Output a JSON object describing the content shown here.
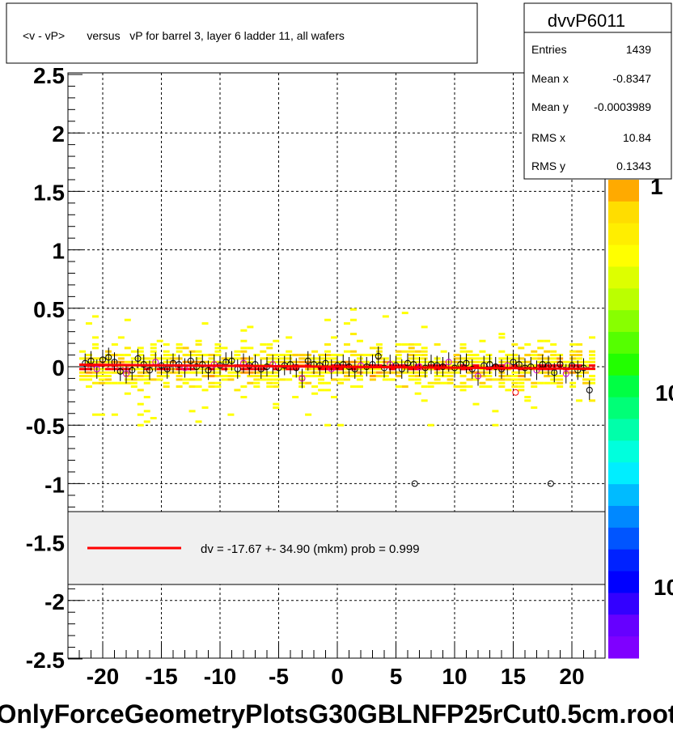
{
  "title": "<v - vP>       versus   vP for barrel 3, layer 6 ladder 11, all wafers",
  "filename": "OnlyForceGeometryPlotsG30GBLNFP25rCut0.5cm.root",
  "stats": {
    "name": "dvvP6011",
    "rows": [
      {
        "label": "Entries",
        "value": "1439"
      },
      {
        "label": "Mean x",
        "value": "-0.8347"
      },
      {
        "label": "Mean y",
        "value": "-0.0003989"
      },
      {
        "label": "RMS x",
        "value": "10.84"
      },
      {
        "label": "RMS y",
        "value": "0.1343"
      }
    ]
  },
  "legend": {
    "text": "dv =  -17.67 +- 34.90 (mkm) prob = 0.999",
    "color": "#ff0000"
  },
  "palette_labels": [
    "1",
    "10",
    "10"
  ],
  "colors": {
    "fit_line": "#ff0000",
    "grid": "#000000",
    "legend_bg": "#f0f0f0"
  },
  "chart_data": {
    "type": "scatter",
    "title": "<v - vP>       versus   vP for barrel 3, layer 6 ladder 11, all wafers",
    "xlim": [
      -23,
      23
    ],
    "ylim": [
      -2.5,
      2.5
    ],
    "x_ticks": [
      -20,
      -15,
      -10,
      -5,
      0,
      5,
      10,
      15,
      20
    ],
    "y_ticks": [
      -2.5,
      -2,
      -1.5,
      -1,
      -0.5,
      0,
      0.5,
      1,
      1.5,
      2,
      2.5
    ],
    "grid": true,
    "fit": {
      "slope": -0.0008,
      "intercept": 0.0
    },
    "profile_points": [
      [
        -21.5,
        0.03
      ],
      [
        -21.0,
        0.05
      ],
      [
        -20.5,
        -0.02
      ],
      [
        -20.0,
        0.06
      ],
      [
        -19.5,
        0.08
      ],
      [
        -19.0,
        0.04
      ],
      [
        -18.5,
        -0.04
      ],
      [
        -18.0,
        -0.06
      ],
      [
        -17.5,
        -0.03
      ],
      [
        -17.0,
        0.07
      ],
      [
        -16.5,
        0.02
      ],
      [
        -16.0,
        -0.03
      ],
      [
        -15.5,
        0.04
      ],
      [
        -15.0,
        0.01
      ],
      [
        -14.5,
        -0.02
      ],
      [
        -14.0,
        0.03
      ],
      [
        -13.5,
        0.02
      ],
      [
        -13.0,
        -0.01
      ],
      [
        -12.5,
        0.05
      ],
      [
        -12.0,
        0.0
      ],
      [
        -11.5,
        0.02
      ],
      [
        -11.0,
        -0.03
      ],
      [
        -10.5,
        0.02
      ],
      [
        -10.0,
        0.01
      ],
      [
        -9.5,
        0.04
      ],
      [
        -9.0,
        0.05
      ],
      [
        -8.5,
        -0.02
      ],
      [
        -8.0,
        0.03
      ],
      [
        -7.5,
        0.01
      ],
      [
        -7.0,
        0.02
      ],
      [
        -6.5,
        -0.02
      ],
      [
        -6.0,
        0.0
      ],
      [
        -5.5,
        0.02
      ],
      [
        -5.0,
        -0.01
      ],
      [
        -4.5,
        0.01
      ],
      [
        -4.0,
        0.02
      ],
      [
        -3.5,
        -0.01
      ],
      [
        -3.0,
        -0.1
      ],
      [
        -2.5,
        0.05
      ],
      [
        -2.0,
        0.02
      ],
      [
        -1.5,
        0.01
      ],
      [
        -1.0,
        0.03
      ],
      [
        -0.5,
        -0.02
      ],
      [
        0.0,
        0.01
      ],
      [
        0.5,
        0.02
      ],
      [
        1.0,
        0.0
      ],
      [
        1.5,
        -0.02
      ],
      [
        2.0,
        0.01
      ],
      [
        2.5,
        0.0
      ],
      [
        3.0,
        0.02
      ],
      [
        3.5,
        0.09
      ],
      [
        4.0,
        -0.01
      ],
      [
        4.5,
        0.02
      ],
      [
        5.0,
        0.01
      ],
      [
        5.5,
        -0.02
      ],
      [
        6.0,
        0.03
      ],
      [
        6.5,
        0.02
      ],
      [
        7.0,
        0.0
      ],
      [
        7.5,
        -0.01
      ],
      [
        8.0,
        0.02
      ],
      [
        8.5,
        0.01
      ],
      [
        9.0,
        0.0
      ],
      [
        9.5,
        0.04
      ],
      [
        10.0,
        -0.01
      ],
      [
        10.5,
        0.02
      ],
      [
        11.0,
        0.03
      ],
      [
        11.5,
        -0.02
      ],
      [
        12.0,
        -0.08
      ],
      [
        12.5,
        0.01
      ],
      [
        13.0,
        0.02
      ],
      [
        13.5,
        0.0
      ],
      [
        14.0,
        -0.02
      ],
      [
        14.5,
        0.01
      ],
      [
        15.0,
        0.04
      ],
      [
        15.5,
        0.02
      ],
      [
        16.0,
        -0.01
      ],
      [
        16.5,
        0.0
      ],
      [
        17.0,
        -0.03
      ],
      [
        17.5,
        0.02
      ],
      [
        18.0,
        0.01
      ],
      [
        18.5,
        -0.05
      ],
      [
        19.0,
        0.02
      ],
      [
        19.5,
        -0.06
      ],
      [
        20.0,
        0.01
      ],
      [
        20.5,
        -0.03
      ],
      [
        21.0,
        -0.01
      ],
      [
        21.5,
        -0.2
      ]
    ],
    "outliers": [
      [
        6.6,
        -1.0
      ],
      [
        18.2,
        -1.0
      ],
      [
        15.2,
        -0.22
      ]
    ]
  }
}
